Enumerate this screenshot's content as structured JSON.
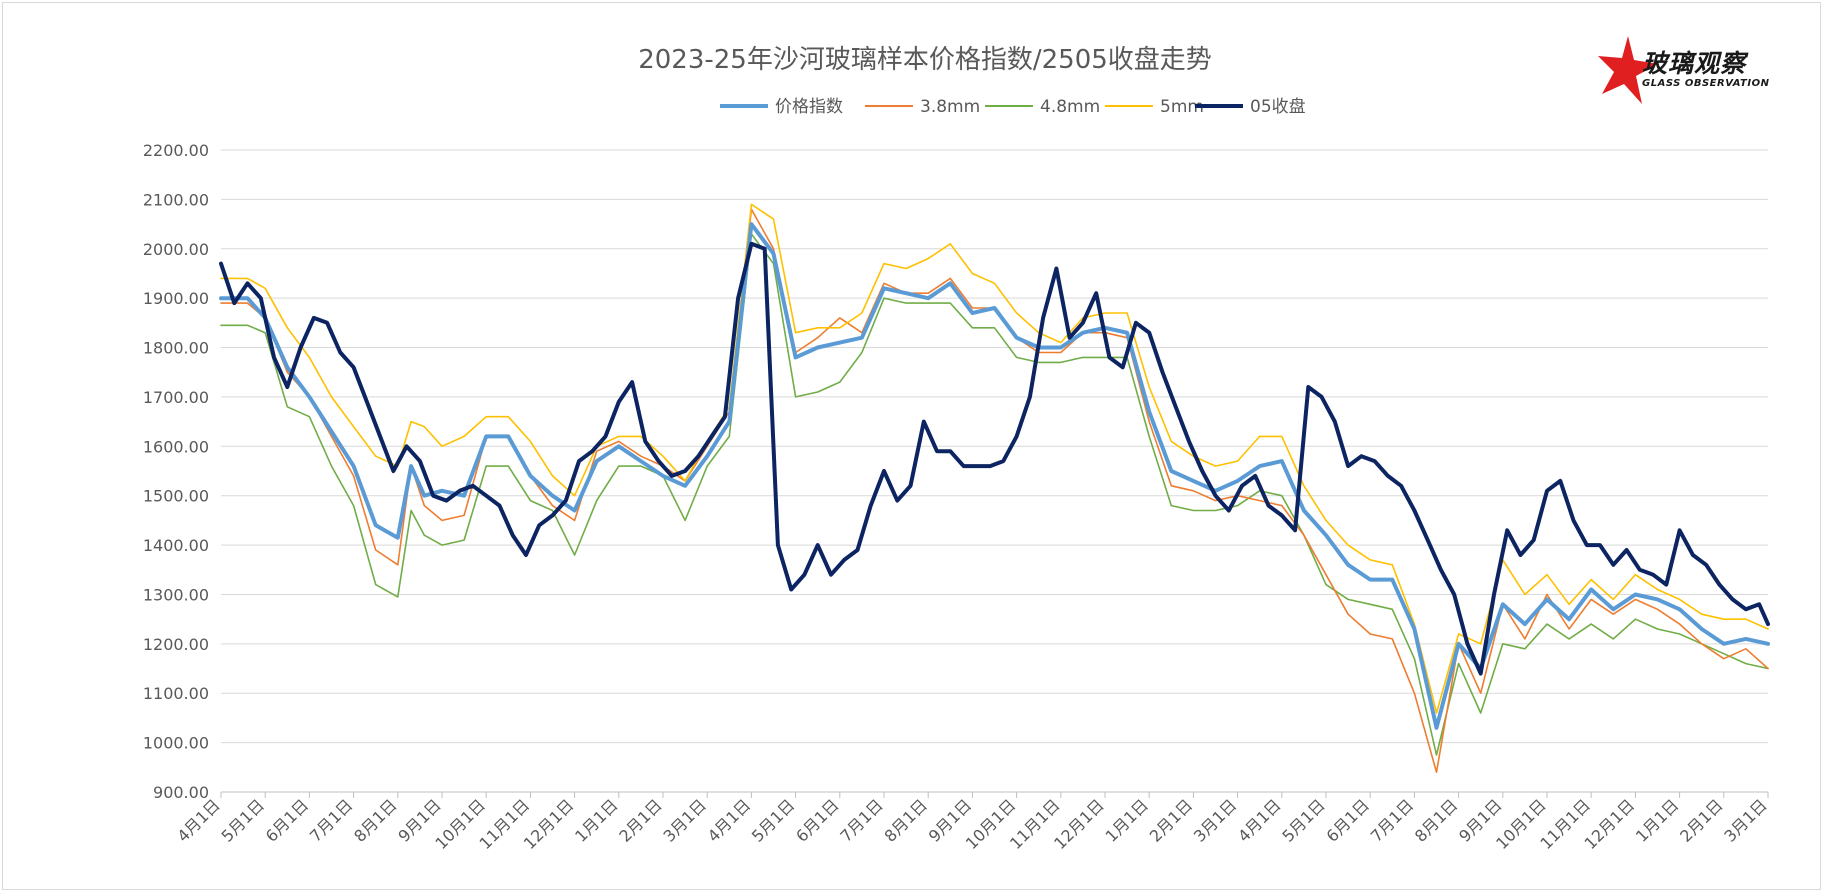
{
  "logo": {
    "text": "玻璃观察",
    "sub": "GLASS OBSERVATION"
  },
  "colors": {
    "index": "#5b9bd5",
    "mm38": "#ed7d31",
    "mm48": "#70ad47",
    "mm5": "#ffc000",
    "close05": "#0c2461",
    "grid": "#d9d9d9",
    "axis_text": "#595959",
    "title": "#595959",
    "logo_red": "#e02020"
  },
  "chart_data": {
    "type": "line",
    "title": "2023-25年沙河玻璃样本价格指数/2505收盘走势",
    "xlabel": "",
    "ylabel": "",
    "ylim": [
      900,
      2200
    ],
    "yticks": [
      "900.00",
      "1000.00",
      "1100.00",
      "1200.00",
      "1300.00",
      "1400.00",
      "1500.00",
      "1600.00",
      "1700.00",
      "1800.00",
      "1900.00",
      "2000.00",
      "2100.00",
      "2200.00"
    ],
    "x_range": [
      0,
      35
    ],
    "x_ticks": [
      "4月1日",
      "5月1日",
      "6月1日",
      "7月1日",
      "8月1日",
      "9月1日",
      "10月1日",
      "11月1日",
      "12月1日",
      "1月1日",
      "2月1日",
      "3月1日",
      "4月1日",
      "5月1日",
      "6月1日",
      "7月1日",
      "8月1日",
      "9月1日",
      "10月1日",
      "11月1日",
      "12月1日",
      "1月1日",
      "2月1日",
      "3月1日",
      "4月1日",
      "5月1日",
      "6月1日",
      "7月1日",
      "8月1日",
      "9月1日",
      "10月1日",
      "11月1日",
      "12月1日",
      "1月1日",
      "2月1日",
      "3月1日"
    ],
    "grid": true,
    "legend_position": "top-center",
    "series": [
      {
        "name": "价格指数",
        "x": [
          0,
          0.6,
          1,
          1.5,
          2,
          2.5,
          3,
          3.5,
          4,
          4.3,
          4.6,
          5,
          5.5,
          6,
          6.5,
          7,
          7.5,
          8,
          8.5,
          9,
          9.5,
          10,
          10.5,
          11,
          11.5,
          12,
          12.5,
          13,
          13.5,
          14,
          14.5,
          15,
          15.5,
          16,
          16.5,
          17,
          17.5,
          18,
          18.5,
          19,
          19.5,
          20,
          20.5,
          21,
          21.5,
          22,
          22.5,
          23,
          23.5,
          24,
          24.5,
          25,
          25.5,
          26,
          26.5,
          27,
          27.5,
          28,
          28.5,
          29,
          29.5,
          30,
          30.5,
          31,
          31.5,
          32,
          32.5,
          33,
          33.5,
          34,
          34.5,
          35
        ],
        "values": [
          1900,
          1900,
          1860,
          1760,
          1700,
          1630,
          1560,
          1440,
          1415,
          1560,
          1500,
          1510,
          1500,
          1620,
          1620,
          1540,
          1500,
          1470,
          1570,
          1600,
          1570,
          1540,
          1520,
          1580,
          1650,
          2050,
          1990,
          1780,
          1800,
          1810,
          1820,
          1920,
          1910,
          1900,
          1930,
          1870,
          1880,
          1820,
          1800,
          1800,
          1830,
          1840,
          1830,
          1670,
          1550,
          1530,
          1510,
          1530,
          1560,
          1570,
          1470,
          1420,
          1360,
          1330,
          1330,
          1230,
          1030,
          1200,
          1150,
          1280,
          1240,
          1290,
          1250,
          1310,
          1270,
          1300,
          1290,
          1270,
          1230,
          1200,
          1210,
          1200
        ]
      },
      {
        "name": "3.8mm",
        "x": [
          0,
          0.6,
          1,
          1.5,
          2,
          2.5,
          3,
          3.5,
          4,
          4.3,
          4.6,
          5,
          5.5,
          6,
          6.5,
          7,
          7.5,
          8,
          8.5,
          9,
          9.5,
          10,
          10.5,
          11,
          11.5,
          12,
          12.5,
          13,
          13.5,
          14,
          14.5,
          15,
          15.5,
          16,
          16.5,
          17,
          17.5,
          18,
          18.5,
          19,
          19.5,
          20,
          20.5,
          21,
          21.5,
          22,
          22.5,
          23,
          23.5,
          24,
          24.5,
          25,
          25.5,
          26,
          26.5,
          27,
          27.5,
          28,
          28.5,
          29,
          29.5,
          30,
          30.5,
          31,
          31.5,
          32,
          32.5,
          33,
          33.5,
          34,
          34.5,
          35
        ],
        "values": [
          1890,
          1890,
          1860,
          1750,
          1700,
          1620,
          1540,
          1390,
          1360,
          1560,
          1480,
          1450,
          1460,
          1620,
          1620,
          1540,
          1480,
          1450,
          1590,
          1610,
          1580,
          1560,
          1530,
          1600,
          1670,
          2080,
          2000,
          1790,
          1820,
          1860,
          1830,
          1930,
          1910,
          1910,
          1940,
          1880,
          1880,
          1820,
          1790,
          1790,
          1830,
          1830,
          1820,
          1650,
          1520,
          1510,
          1490,
          1500,
          1490,
          1480,
          1420,
          1340,
          1260,
          1220,
          1210,
          1100,
          940,
          1200,
          1100,
          1280,
          1210,
          1300,
          1230,
          1290,
          1260,
          1290,
          1270,
          1240,
          1200,
          1170,
          1190,
          1150
        ]
      },
      {
        "name": "4.8mm",
        "x": [
          0,
          0.6,
          1,
          1.5,
          2,
          2.5,
          3,
          3.5,
          4,
          4.3,
          4.6,
          5,
          5.5,
          6,
          6.5,
          7,
          7.5,
          8,
          8.5,
          9,
          9.5,
          10,
          10.5,
          11,
          11.5,
          12,
          12.5,
          13,
          13.5,
          14,
          14.5,
          15,
          15.5,
          16,
          16.5,
          17,
          17.5,
          18,
          18.5,
          19,
          19.5,
          20,
          20.5,
          21,
          21.5,
          22,
          22.5,
          23,
          23.5,
          24,
          24.5,
          25,
          25.5,
          26,
          26.5,
          27,
          27.5,
          28,
          28.5,
          29,
          29.5,
          30,
          30.5,
          31,
          31.5,
          32,
          32.5,
          33,
          33.5,
          34,
          34.5,
          35
        ],
        "values": [
          1845,
          1845,
          1830,
          1680,
          1660,
          1560,
          1480,
          1320,
          1295,
          1470,
          1420,
          1400,
          1410,
          1560,
          1560,
          1490,
          1470,
          1380,
          1490,
          1560,
          1560,
          1540,
          1450,
          1560,
          1620,
          2030,
          1970,
          1700,
          1710,
          1730,
          1790,
          1900,
          1890,
          1890,
          1890,
          1840,
          1840,
          1780,
          1770,
          1770,
          1780,
          1780,
          1780,
          1620,
          1480,
          1470,
          1470,
          1480,
          1510,
          1500,
          1420,
          1320,
          1290,
          1280,
          1270,
          1170,
          975,
          1160,
          1060,
          1200,
          1190,
          1240,
          1210,
          1240,
          1210,
          1250,
          1230,
          1220,
          1200,
          1180,
          1160,
          1150
        ]
      },
      {
        "name": "5mm",
        "x": [
          0,
          0.6,
          1,
          1.5,
          2,
          2.5,
          3,
          3.5,
          4,
          4.3,
          4.6,
          5,
          5.5,
          6,
          6.5,
          7,
          7.5,
          8,
          8.5,
          9,
          9.5,
          10,
          10.5,
          11,
          11.5,
          12,
          12.5,
          13,
          13.5,
          14,
          14.5,
          15,
          15.5,
          16,
          16.5,
          17,
          17.5,
          18,
          18.5,
          19,
          19.5,
          20,
          20.5,
          21,
          21.5,
          22,
          22.5,
          23,
          23.5,
          24,
          24.5,
          25,
          25.5,
          26,
          26.5,
          27,
          27.5,
          28,
          28.5,
          29,
          29.5,
          30,
          30.5,
          31,
          31.5,
          32,
          32.5,
          33,
          33.5,
          34,
          34.5,
          35
        ],
        "values": [
          1940,
          1940,
          1920,
          1840,
          1780,
          1700,
          1640,
          1580,
          1560,
          1650,
          1640,
          1600,
          1620,
          1660,
          1660,
          1610,
          1540,
          1500,
          1600,
          1620,
          1620,
          1580,
          1530,
          1610,
          1680,
          2090,
          2060,
          1830,
          1840,
          1840,
          1870,
          1970,
          1960,
          1980,
          2010,
          1950,
          1930,
          1870,
          1830,
          1810,
          1860,
          1870,
          1870,
          1720,
          1610,
          1580,
          1560,
          1570,
          1620,
          1620,
          1520,
          1450,
          1400,
          1370,
          1360,
          1240,
          1060,
          1220,
          1200,
          1370,
          1300,
          1340,
          1280,
          1330,
          1290,
          1340,
          1310,
          1290,
          1260,
          1250,
          1250,
          1230
        ]
      },
      {
        "name": "05收盘",
        "x": [
          0,
          0.3,
          0.6,
          0.9,
          1.2,
          1.5,
          1.8,
          2.1,
          2.4,
          2.7,
          3,
          3.3,
          3.6,
          3.9,
          4.2,
          4.5,
          4.8,
          5.1,
          5.4,
          5.7,
          6,
          6.3,
          6.6,
          6.9,
          7.2,
          7.5,
          7.8,
          8.1,
          8.4,
          8.7,
          9,
          9.3,
          9.6,
          9.9,
          10.2,
          10.5,
          10.8,
          11.1,
          11.4,
          11.7,
          12,
          12.3,
          12.6,
          12.9,
          13.2,
          13.5,
          13.8,
          14.1,
          14.4,
          14.7,
          15,
          15.3,
          15.6,
          15.9,
          16.2,
          16.5,
          16.8,
          17.1,
          17.4,
          17.7,
          18,
          18.3,
          18.6,
          18.9,
          19.2,
          19.5,
          19.8,
          20.1,
          20.4,
          20.7,
          21,
          21.3,
          21.6,
          21.9,
          22.2,
          22.5,
          22.8,
          23.1,
          23.4,
          23.7,
          24,
          24.3,
          24.6,
          24.9,
          25.2,
          25.5,
          25.8,
          26.1,
          26.4,
          26.7,
          27,
          27.3,
          27.6,
          27.9,
          28.2,
          28.5,
          28.8,
          29.1,
          29.4,
          29.7,
          30,
          30.3,
          30.6,
          30.9,
          31.2,
          31.5,
          31.8,
          32.1,
          32.4,
          32.7,
          33,
          33.3,
          33.6,
          33.9,
          34.2,
          34.5,
          34.8,
          35
        ],
        "values": [
          1970,
          1890,
          1930,
          1900,
          1780,
          1720,
          1800,
          1860,
          1850,
          1790,
          1760,
          1690,
          1620,
          1550,
          1600,
          1570,
          1500,
          1490,
          1510,
          1520,
          1500,
          1480,
          1420,
          1380,
          1440,
          1460,
          1490,
          1570,
          1590,
          1620,
          1690,
          1730,
          1610,
          1570,
          1540,
          1550,
          1580,
          1620,
          1660,
          1900,
          2010,
          2000,
          1400,
          1310,
          1340,
          1400,
          1340,
          1370,
          1390,
          1480,
          1550,
          1490,
          1520,
          1650,
          1590,
          1590,
          1560,
          1560,
          1560,
          1570,
          1620,
          1700,
          1860,
          1960,
          1820,
          1850,
          1910,
          1780,
          1760,
          1850,
          1830,
          1750,
          1680,
          1610,
          1550,
          1500,
          1470,
          1520,
          1540,
          1480,
          1460,
          1430,
          1720,
          1700,
          1650,
          1560,
          1580,
          1570,
          1540,
          1520,
          1470,
          1410,
          1350,
          1300,
          1200,
          1140,
          1300,
          1430,
          1380,
          1410,
          1510,
          1530,
          1450,
          1400,
          1400,
          1360,
          1390,
          1350,
          1340,
          1320,
          1430,
          1380,
          1360,
          1320,
          1290,
          1270,
          1280,
          1240
        ]
      }
    ]
  }
}
